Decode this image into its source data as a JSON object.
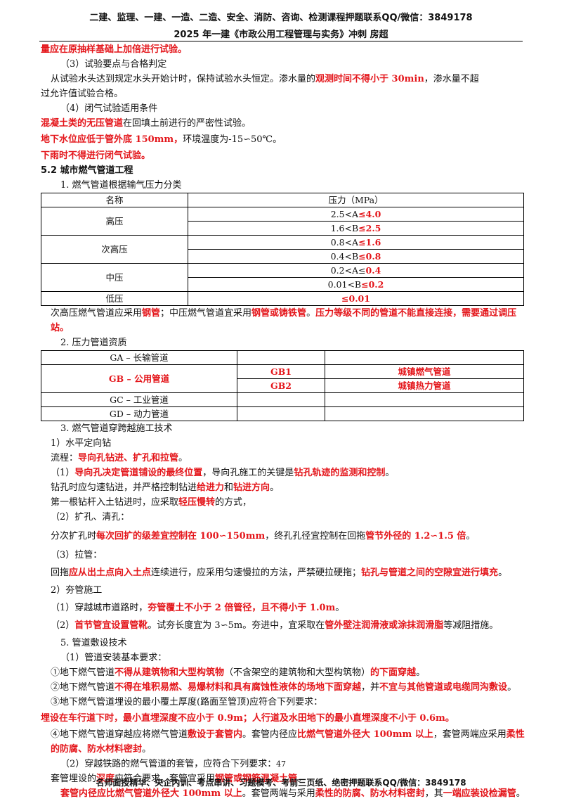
{
  "header": {
    "line1": "二建、监理、一建、一造、二造、安全、消防、咨询、检测课程押题联系QQ/微信：3849178",
    "line2": "2025 年一建《市政公用工程管理与实务》冲刺 房超"
  },
  "lines": {
    "l1": "量应在原抽样基础上加倍进行试验。",
    "l2": "（3）试验要点与合格判定",
    "l3a": "从试验水头达到规定水头开始计时，保持试验水头恒定。渗水量的",
    "l3b": "观测时间不得小于 30min",
    "l3c": "，渗水量不超",
    "l4": "过允许值试验合格。",
    "l5": "（4）闭气试验适用条件",
    "l6a": "混凝土类的无压管道",
    "l6b": "在回填土前进行的严密性试验。",
    "l7a": "地下水位应低于管外底 150mm，",
    "l7b": "环境温度为-15∽50℃。",
    "l8": "下雨时不得进行闭气试验。",
    "l9": "5.2  城市燃气管道工程",
    "l10": "1. 燃气管道根据输气压力分类"
  },
  "table1": {
    "h1": "名称",
    "h2": "压力（MPa）",
    "rows": [
      {
        "name": "高压",
        "a": "2.5<A",
        "a2": "≤4.0",
        "b": "1.6<B",
        "b2": "≤2.5"
      },
      {
        "name": "次高压",
        "a": "0.8<A",
        "a2": "≤1.6",
        "b": "0.4<B",
        "b2": "≤0.8"
      },
      {
        "name": "中压",
        "a": "0.2<A≤",
        "a2": "0.4",
        "b": "0.01<B",
        "b2": "≤0.2"
      },
      {
        "name": "低压",
        "a": "",
        "a2": "≤0.01"
      }
    ]
  },
  "after_t1": {
    "a": "次高压燃气管道应采用",
    "b": "钢管",
    "c": "；中压燃气管道宜采用",
    "d": "钢管或铸铁管",
    "e": "。",
    "f": "压力等级不同的管道不能直接连接，需要通过调压站。"
  },
  "sec2": "2. 压力管道资质",
  "table2": {
    "ga": "GA  –  长输管道",
    "gb": "GB  –  公用管道",
    "gb1": "GB1",
    "gb1v": "城镇燃气管道",
    "gb2": "GB2",
    "gb2v": "城镇热力管道",
    "gc": "GC  –  工业管道",
    "gd": "GD  –  动力管道"
  },
  "sec3": {
    "t": "3. 燃气管道穿跨越施工技术",
    "s1": "1）水平定向钻",
    "flow_a": "流程：",
    "flow_b": "导向孔钻进、扩孔和拉管",
    "flow_c": "。",
    "p1a": "（1）",
    "p1b": "导向孔决定管道铺设的最终位置",
    "p1c": "，导向孔施工的关键是",
    "p1d": "钻孔轨迹的监测和控制",
    "p1e": "。",
    "p2a": "钻孔时应匀速钻进，并严格控制钻进",
    "p2b": "给进力",
    "p2c": "和",
    "p2d": "钻进方向",
    "p2e": "。",
    "p3a": "第一根钻杆入土钻进时，应采取",
    "p3b": "轻压慢转",
    "p3c": "的方式，",
    "p4": "（2）扩孔、清孔：",
    "p5a": "分次扩孔时",
    "p5b": "每次回扩的级差宜控制在 100∽150mm",
    "p5c": "，终孔孔径宜控制在回拖",
    "p5d": "管节外径的 1.2∽1.5 倍",
    "p5e": "。",
    "p6": "（3）拉管：",
    "p7a": "回拖",
    "p7b": "应从出土点向入土点",
    "p7c": "连续进行，应采用匀速慢拉的方法，严禁硬拉硬拖；",
    "p7d": "钻孔与管道之间的空隙宜进行填充",
    "p7e": "。",
    "s2": "2）夯管施工",
    "p8a": "（1）穿越城市道路时，",
    "p8b": "夯管覆土不小于 2 倍管径，且不得小于 1.0m",
    "p8c": "。",
    "p9a": "（2）",
    "p9b": "首节管宜设置管靴",
    "p9c": "。试夯长度宜为 3∽5m。夯进中，宜采取在",
    "p9d": "管外壁注润滑液或涂抹润滑脂",
    "p9e": "等减阻措施。"
  },
  "sec5": {
    "t": "5. 管道敷设技术",
    "s1": "（1）管道安装基本要求：",
    "q1a": "①地下燃气管道",
    "q1b": "不得从建筑物和大型构筑物",
    "q1c": "（不含架空的建筑物和大型构筑物）",
    "q1d": "的下面穿越",
    "q1e": "。",
    "q2a": "②地下燃气管道",
    "q2b": "不得在堆积易燃、易爆材料和具有腐蚀性液体的场地下面穿越",
    "q2c": "，并",
    "q2d": "不宜与其他管道或电缆同沟敷设",
    "q2e": "。",
    "q3": "③地下燃气管道埋设的最小覆土厚度(路面至管顶)应符合下列要求：",
    "q4": "埋设在车行道下时，最小直埋深度不应小于 0.9m；人行道及水田地下的最小直埋深度不小于 0.6m。",
    "q5a": "④地下燃气管道穿越应将燃气管道",
    "q5b": "敷设于套管内",
    "q5c": "。套管内径应",
    "q5d": "比燃气管道外径大 100mm 以上",
    "q5e": "，套管两端应采用",
    "q5f": "柔性的防腐、防水材料密封",
    "q5g": "。",
    "s2": "（2）穿越铁路的燃气管道的套管，应符合下列要求：",
    "r1a": "套管埋设的",
    "r1b": "深度",
    "r1c": "应符合要求。套管宜采用",
    "r1d": "钢管或钢筋混凝土管",
    "r1e": "。",
    "r2a": "套管内径应比燃气管道外径大 100mm 以上",
    "r2b": "。套管两端与采用",
    "r2c": "柔性的防腐、防水材料密封",
    "r2d": "，其",
    "r2e": "一端应装设检漏管",
    "r2f": "。"
  },
  "page_number": "47",
  "footer": "名师面授精华、央企内训、考点串讲、习题模考、考前三页纸、绝密押题联系QQ/微信：3849178"
}
